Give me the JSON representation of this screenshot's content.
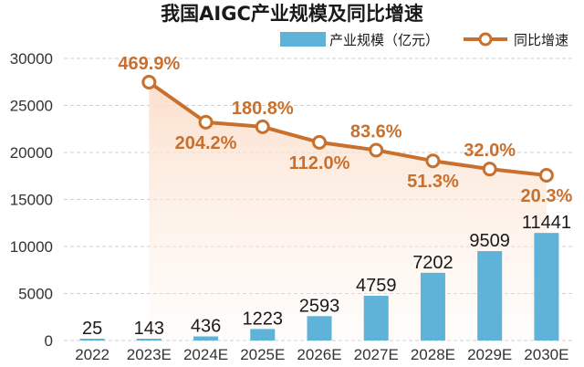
{
  "chart_data": {
    "type": "bar",
    "title": "我国AIGC产业规模及同比增速",
    "categories": [
      "2022",
      "2023E",
      "2024E",
      "2025E",
      "2026E",
      "2027E",
      "2028E",
      "2029E",
      "2030E"
    ],
    "series": [
      {
        "name": "产业规模（亿元）",
        "type": "bar",
        "values": [
          25,
          143,
          436,
          1223,
          2593,
          4759,
          7202,
          9509,
          11441
        ],
        "labels": [
          "25",
          "143",
          "436",
          "1223",
          "2593",
          "4759",
          "7202",
          "9509",
          "11441"
        ],
        "color": "#5fb3d9"
      },
      {
        "name": "同比增速",
        "type": "line",
        "values": [
          null,
          469.9,
          204.2,
          180.8,
          112.0,
          83.6,
          51.3,
          32.0,
          20.3
        ],
        "labels": [
          null,
          "469.9%",
          "204.2%",
          "180.8%",
          "112.0%",
          "83.6%",
          "51.3%",
          "32.0%",
          "20.3%"
        ],
        "color": "#c8702e"
      }
    ],
    "ylim": [
      0,
      30000
    ],
    "yticks": [
      "0",
      "5000",
      "10000",
      "15000",
      "20000",
      "25000",
      "30000"
    ],
    "grid": true,
    "legend_position": "top-right",
    "colors": {
      "bar": "#5fb3d9",
      "line": "#c8702e",
      "grid": "#cfcfcf",
      "area_top": "#fbdcc6"
    }
  }
}
